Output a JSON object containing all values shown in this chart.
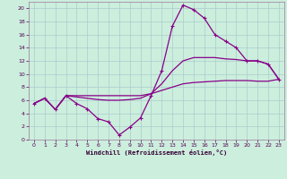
{
  "xlabel": "Windchill (Refroidissement éolien,°C)",
  "bg_color": "#cceedd",
  "line_color": "#880088",
  "grid_color": "#aacccc",
  "xlim": [
    -0.5,
    23.5
  ],
  "ylim": [
    0,
    21
  ],
  "xticks": [
    0,
    1,
    2,
    3,
    4,
    5,
    6,
    7,
    8,
    9,
    10,
    11,
    12,
    13,
    14,
    15,
    16,
    17,
    18,
    19,
    20,
    21,
    22,
    23
  ],
  "yticks": [
    0,
    2,
    4,
    6,
    8,
    10,
    12,
    14,
    16,
    18,
    20
  ],
  "curve1_x": [
    0,
    1,
    2,
    3,
    4,
    5,
    6,
    7,
    8,
    9,
    10,
    11,
    12,
    13,
    14,
    15,
    16,
    17,
    18,
    19,
    20,
    21,
    22,
    23
  ],
  "curve1_y": [
    5.5,
    6.3,
    4.6,
    6.7,
    5.5,
    4.7,
    3.2,
    2.7,
    0.7,
    1.9,
    3.3,
    6.7,
    10.5,
    17.3,
    20.5,
    19.8,
    18.5,
    16.0,
    15.0,
    14.0,
    12.0,
    12.0,
    11.5,
    9.2
  ],
  "curve2_x": [
    0,
    1,
    2,
    3,
    4,
    5,
    6,
    7,
    8,
    9,
    10,
    11,
    12,
    13,
    14,
    15,
    16,
    17,
    18,
    19,
    20,
    21,
    22,
    23
  ],
  "curve2_y": [
    5.5,
    6.3,
    4.6,
    6.7,
    6.7,
    6.7,
    6.7,
    6.7,
    6.7,
    6.7,
    6.7,
    7.0,
    7.5,
    8.0,
    8.5,
    8.7,
    8.8,
    8.9,
    9.0,
    9.0,
    9.0,
    8.9,
    8.9,
    9.2
  ],
  "curve3_x": [
    0,
    1,
    2,
    3,
    4,
    5,
    6,
    7,
    8,
    9,
    10,
    11,
    12,
    13,
    14,
    15,
    16,
    17,
    18,
    19,
    20,
    21,
    22,
    23
  ],
  "curve3_y": [
    5.5,
    6.3,
    4.6,
    6.7,
    6.5,
    6.3,
    6.1,
    6.0,
    6.0,
    6.1,
    6.3,
    7.0,
    8.5,
    10.5,
    12.0,
    12.5,
    12.5,
    12.5,
    12.3,
    12.2,
    12.0,
    12.0,
    11.5,
    9.2
  ]
}
